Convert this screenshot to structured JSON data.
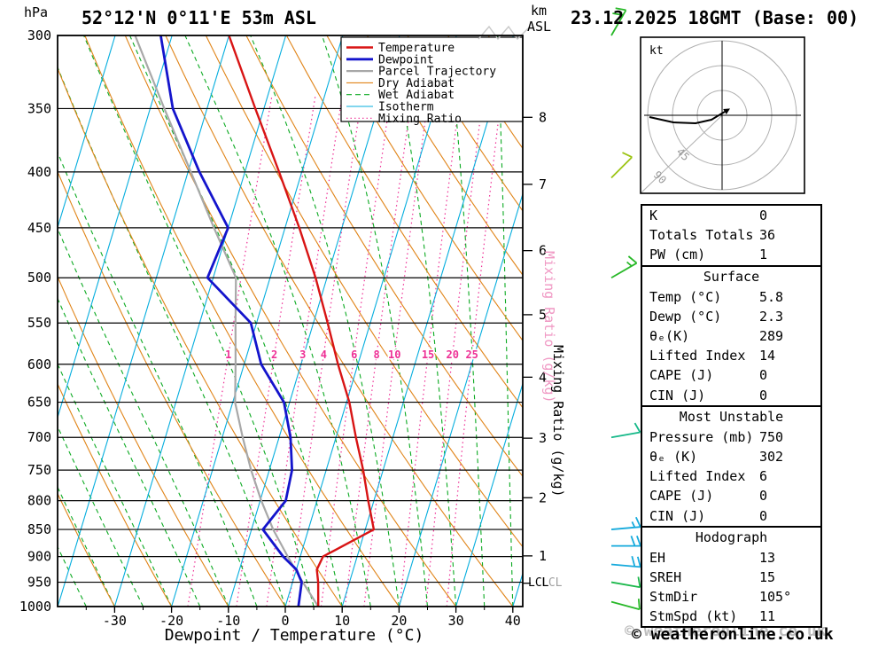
{
  "header": {
    "station": "52°12'N 0°11'E 53m ASL",
    "datetime": "23.12.2025 18GMT (Base: 00)",
    "pressure_unit": "hPa",
    "altitude_unit_line1": "km",
    "altitude_unit_line2": "ASL"
  },
  "axes": {
    "x_label": "Dewpoint / Temperature (°C)",
    "mixing_ratio_label": "Mixing Ratio (g/kg)",
    "lcl_label": "LCL",
    "pressure_ticks": [
      300,
      350,
      400,
      450,
      500,
      550,
      600,
      650,
      700,
      750,
      800,
      850,
      900,
      950,
      1000
    ],
    "km_ticks": [
      8,
      7,
      6,
      5,
      4,
      3,
      2,
      1
    ],
    "temp_ticks": [
      -30,
      -20,
      -10,
      0,
      10,
      20,
      30,
      40
    ]
  },
  "legend": {
    "items": [
      {
        "label": "Temperature",
        "color": "#d81414",
        "style": "solid",
        "width": 2.4
      },
      {
        "label": "Dewpoint",
        "color": "#1414cc",
        "style": "solid",
        "width": 2.8
      },
      {
        "label": "Parcel Trajectory",
        "color": "#a8a8a8",
        "style": "solid",
        "width": 2.2
      },
      {
        "label": "Dry Adiabat",
        "color": "#e08418",
        "style": "solid",
        "width": 1.1
      },
      {
        "label": "Wet Adiabat",
        "color": "#0caa22",
        "style": "dashed",
        "width": 1.1
      },
      {
        "label": "Isotherm",
        "color": "#06aede",
        "style": "solid",
        "width": 1.1
      },
      {
        "label": "Mixing Ratio",
        "color": "#ee2f95",
        "style": "dotted",
        "width": 1.2
      }
    ]
  },
  "hodograph": {
    "unit": "kt",
    "ring_labels": [
      "45",
      "90"
    ],
    "trace": [
      [
        -82,
        2
      ],
      [
        -55,
        8
      ],
      [
        -30,
        9
      ],
      [
        -12,
        5
      ],
      [
        3,
        -4
      ]
    ]
  },
  "table": {
    "sections": [
      {
        "header": null,
        "rows": [
          [
            "K",
            "0"
          ],
          [
            "Totals Totals",
            "36"
          ],
          [
            "PW (cm)",
            "1"
          ]
        ]
      },
      {
        "header": "Surface",
        "rows": [
          [
            "Temp (°C)",
            "5.8"
          ],
          [
            "Dewp (°C)",
            "2.3"
          ],
          [
            "θₑ(K)",
            "289"
          ],
          [
            "Lifted Index",
            "14"
          ],
          [
            "CAPE (J)",
            "0"
          ],
          [
            "CIN (J)",
            "0"
          ]
        ]
      },
      {
        "header": "Most Unstable",
        "rows": [
          [
            "Pressure (mb)",
            "750"
          ],
          [
            "θₑ (K)",
            "302"
          ],
          [
            "Lifted Index",
            "6"
          ],
          [
            "CAPE (J)",
            "0"
          ],
          [
            "CIN (J)",
            "0"
          ]
        ]
      },
      {
        "header": "Hodograph",
        "rows": [
          [
            "EH",
            "13"
          ],
          [
            "SREH",
            "15"
          ],
          [
            "StmDir",
            "105°"
          ],
          [
            "StmSpd (kt)",
            "11"
          ]
        ]
      }
    ]
  },
  "footer": {
    "copyright": "© weatheronline.co.uk"
  },
  "chart_data": {
    "type": "skewt_log_p_sounding",
    "pressure_range_hPa": [
      300,
      1000
    ],
    "temp_axis_range_C": [
      -40,
      42
    ],
    "isotherm_step_C": 10,
    "dry_adiabat_step_C": 10,
    "wet_adiabat_step_C": 5,
    "mixing_ratio_lines_g_per_kg": [
      1,
      2,
      3,
      4,
      6,
      8,
      10,
      15,
      20,
      25
    ],
    "sounding": {
      "levels_hPa": [
        1000,
        950,
        925,
        900,
        850,
        800,
        750,
        700,
        650,
        600,
        550,
        500,
        450,
        400,
        350,
        300
      ],
      "temperature_C": [
        5.8,
        4.5,
        3.6,
        4.0,
        11.5,
        9.0,
        6.5,
        3.5,
        0.5,
        -3.5,
        -7.5,
        -12.0,
        -17.5,
        -24.0,
        -31.5,
        -40.0
      ],
      "dewpoint_C": [
        2.3,
        1.6,
        0.0,
        -3.0,
        -8.0,
        -5.5,
        -6.0,
        -8.0,
        -11.0,
        -17.0,
        -21.0,
        -31.0,
        -30.0,
        -38.0,
        -46.0,
        -52.0
      ]
    },
    "parcel_C": [
      5.8,
      1.8,
      -0.2,
      -2.2,
      -6.2,
      -9.8,
      -13.2,
      -16.4,
      -19.6,
      -21.5,
      -23.7,
      -26.0,
      -32.5,
      -39.5,
      -47.5,
      -56.5
    ],
    "lcl_hPa": 952,
    "wind_barbs": [
      {
        "p": 300,
        "dir": 30,
        "speed_kt": 20,
        "color": "#28b828"
      },
      {
        "p": 405,
        "dir": 45,
        "speed_kt": 10,
        "color": "#9cc414"
      },
      {
        "p": 500,
        "dir": 60,
        "speed_kt": 15,
        "color": "#28b828"
      },
      {
        "p": 700,
        "dir": 80,
        "speed_kt": 10,
        "color": "#14b888"
      },
      {
        "p": 850,
        "dir": 85,
        "speed_kt": 15,
        "color": "#16aadc"
      },
      {
        "p": 880,
        "dir": 90,
        "speed_kt": 20,
        "color": "#16aadc"
      },
      {
        "p": 915,
        "dir": 95,
        "speed_kt": 20,
        "color": "#16aadc"
      },
      {
        "p": 950,
        "dir": 100,
        "speed_kt": 10,
        "color": "#1cb84c"
      },
      {
        "p": 990,
        "dir": 105,
        "speed_kt": 10,
        "color": "#28b828"
      }
    ],
    "surface": {
      "temp_C": 5.8,
      "dewp_C": 2.3,
      "theta_e_K": 289,
      "lifted_index": 14,
      "cape_J": 0,
      "cin_J": 0
    },
    "most_unstable": {
      "pressure_mb": 750,
      "theta_e_K": 302,
      "lifted_index": 6,
      "cape_J": 0,
      "cin_J": 0
    },
    "indices": {
      "K": 0,
      "totals_totals": 36,
      "pw_cm": 1,
      "EH": 13,
      "SREH": 15,
      "storm_dir_deg": 105,
      "storm_speed_kt": 11
    }
  }
}
